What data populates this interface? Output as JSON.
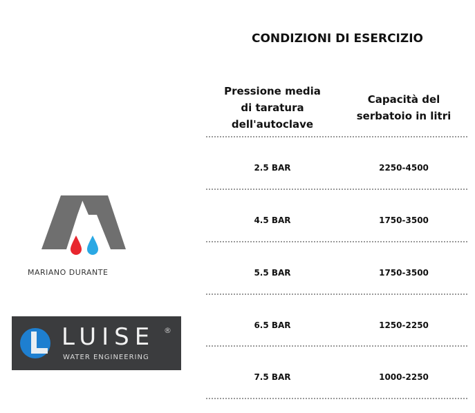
{
  "title": "CONDIZIONI DI ESERCIZIO",
  "headers": [
    "Pressione media di taratura dell'autoclave",
    "Capacità del serbatoio in litri"
  ],
  "rows": [
    {
      "pressure": "2.5 BAR",
      "capacity": "2250-4500"
    },
    {
      "pressure": "4.5 BAR",
      "capacity": "1750-3500"
    },
    {
      "pressure": "5.5 BAR",
      "capacity": "1750-3500"
    },
    {
      "pressure": "6.5 BAR",
      "capacity": "1250-2250"
    },
    {
      "pressure": "7.5 BAR",
      "capacity": "1000-2250"
    }
  ],
  "logos": {
    "mariano": {
      "text": "MARIANO DURANTE",
      "colors": {
        "gray": "#6f6f6f",
        "red": "#e8262e",
        "blue": "#2aa8e4"
      }
    },
    "luise": {
      "name": "LUISE",
      "reg": "®",
      "tagline": "WATER ENGINEERING",
      "colors": {
        "bg": "#3b3c3e",
        "blue": "#1e7fd0"
      }
    }
  }
}
